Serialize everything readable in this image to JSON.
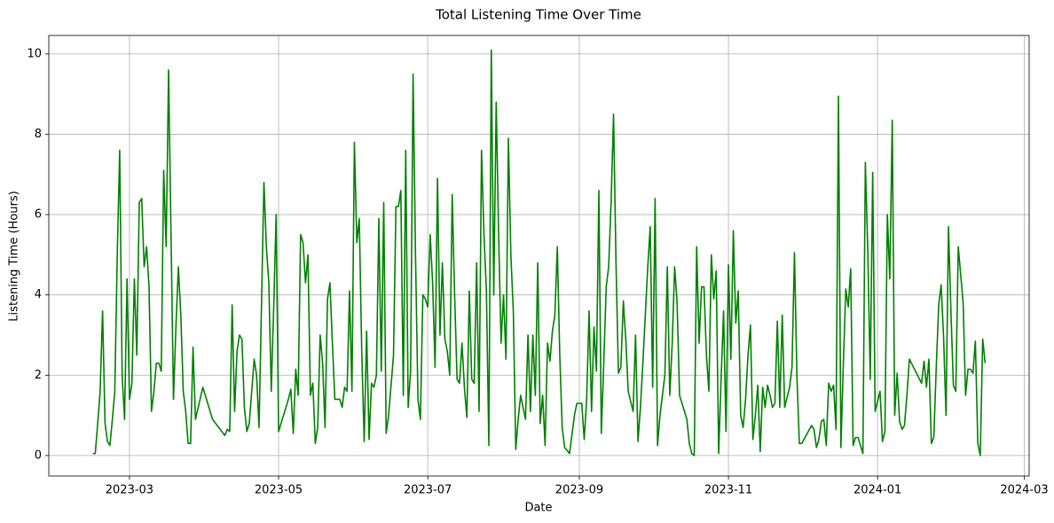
{
  "chart_data": {
    "type": "line",
    "title": "Total Listening Time Over Time",
    "xlabel": "Date",
    "ylabel": "Listening Time (Hours)",
    "x": [
      "2023-02-14",
      "2023-02-15",
      "2023-02-16",
      "2023-02-17",
      "2023-02-18",
      "2023-02-19",
      "2023-02-20",
      "2023-02-21",
      "2023-02-22",
      "2023-02-23",
      "2023-02-24",
      "2023-02-25",
      "2023-02-26",
      "2023-02-27",
      "2023-02-28",
      "2023-03-01",
      "2023-03-02",
      "2023-03-03",
      "2023-03-04",
      "2023-03-05",
      "2023-03-06",
      "2023-03-07",
      "2023-03-08",
      "2023-03-09",
      "2023-03-10",
      "2023-03-11",
      "2023-03-12",
      "2023-03-13",
      "2023-03-14",
      "2023-03-15",
      "2023-03-16",
      "2023-03-17",
      "2023-03-18",
      "2023-03-19",
      "2023-03-20",
      "2023-03-21",
      "2023-03-22",
      "2023-03-23",
      "2023-03-24",
      "2023-03-25",
      "2023-03-26",
      "2023-03-27",
      "2023-03-28",
      "2023-03-31",
      "2023-04-04",
      "2023-04-09",
      "2023-04-10",
      "2023-04-11",
      "2023-04-12",
      "2023-04-13",
      "2023-04-14",
      "2023-04-15",
      "2023-04-16",
      "2023-04-17",
      "2023-04-18",
      "2023-04-19",
      "2023-04-21",
      "2023-04-22",
      "2023-04-23",
      "2023-04-25",
      "2023-04-26",
      "2023-04-27",
      "2023-04-28",
      "2023-04-29",
      "2023-04-30",
      "2023-05-01",
      "2023-05-05",
      "2023-05-06",
      "2023-05-07",
      "2023-05-08",
      "2023-05-09",
      "2023-05-10",
      "2023-05-11",
      "2023-05-12",
      "2023-05-13",
      "2023-05-14",
      "2023-05-15",
      "2023-05-16",
      "2023-05-17",
      "2023-05-18",
      "2023-05-19",
      "2023-05-20",
      "2023-05-21",
      "2023-05-22",
      "2023-05-23",
      "2023-05-24",
      "2023-05-26",
      "2023-05-27",
      "2023-05-28",
      "2023-05-29",
      "2023-05-30",
      "2023-05-31",
      "2023-06-01",
      "2023-06-02",
      "2023-06-03",
      "2023-06-04",
      "2023-06-05",
      "2023-06-06",
      "2023-06-07",
      "2023-06-08",
      "2023-06-09",
      "2023-06-10",
      "2023-06-11",
      "2023-06-12",
      "2023-06-13",
      "2023-06-14",
      "2023-06-15",
      "2023-06-17",
      "2023-06-18",
      "2023-06-19",
      "2023-06-20",
      "2023-06-21",
      "2023-06-22",
      "2023-06-23",
      "2023-06-24",
      "2023-06-25",
      "2023-06-26",
      "2023-06-27",
      "2023-06-28",
      "2023-06-29",
      "2023-06-30",
      "2023-07-01",
      "2023-07-02",
      "2023-07-03",
      "2023-07-04",
      "2023-07-05",
      "2023-07-06",
      "2023-07-07",
      "2023-07-08",
      "2023-07-09",
      "2023-07-10",
      "2023-07-11",
      "2023-07-12",
      "2023-07-13",
      "2023-07-14",
      "2023-07-15",
      "2023-07-16",
      "2023-07-17",
      "2023-07-18",
      "2023-07-19",
      "2023-07-20",
      "2023-07-21",
      "2023-07-22",
      "2023-07-23",
      "2023-07-24",
      "2023-07-25",
      "2023-07-26",
      "2023-07-27",
      "2023-07-28",
      "2023-07-29",
      "2023-07-30",
      "2023-07-31",
      "2023-08-01",
      "2023-08-02",
      "2023-08-03",
      "2023-08-04",
      "2023-08-05",
      "2023-08-06",
      "2023-08-07",
      "2023-08-08",
      "2023-08-09",
      "2023-08-10",
      "2023-08-11",
      "2023-08-12",
      "2023-08-13",
      "2023-08-14",
      "2023-08-15",
      "2023-08-16",
      "2023-08-17",
      "2023-08-18",
      "2023-08-19",
      "2023-08-20",
      "2023-08-21",
      "2023-08-22",
      "2023-08-23",
      "2023-08-24",
      "2023-08-25",
      "2023-08-26",
      "2023-08-28",
      "2023-08-30",
      "2023-08-31",
      "2023-09-02",
      "2023-09-03",
      "2023-09-04",
      "2023-09-05",
      "2023-09-06",
      "2023-09-07",
      "2023-09-08",
      "2023-09-09",
      "2023-09-10",
      "2023-09-11",
      "2023-09-12",
      "2023-09-13",
      "2023-09-14",
      "2023-09-15",
      "2023-09-16",
      "2023-09-17",
      "2023-09-18",
      "2023-09-19",
      "2023-09-20",
      "2023-09-21",
      "2023-09-23",
      "2023-09-24",
      "2023-09-25",
      "2023-09-26",
      "2023-09-27",
      "2023-09-28",
      "2023-09-29",
      "2023-09-30",
      "2023-10-01",
      "2023-10-02",
      "2023-10-03",
      "2023-10-04",
      "2023-10-06",
      "2023-10-07",
      "2023-10-08",
      "2023-10-09",
      "2023-10-10",
      "2023-10-11",
      "2023-10-12",
      "2023-10-15",
      "2023-10-16",
      "2023-10-17",
      "2023-10-18",
      "2023-10-19",
      "2023-10-20",
      "2023-10-21",
      "2023-10-22",
      "2023-10-23",
      "2023-10-24",
      "2023-10-25",
      "2023-10-26",
      "2023-10-27",
      "2023-10-28",
      "2023-10-29",
      "2023-10-30",
      "2023-10-31",
      "2023-11-01",
      "2023-11-02",
      "2023-11-03",
      "2023-11-04",
      "2023-11-05",
      "2023-11-06",
      "2023-11-07",
      "2023-11-08",
      "2023-11-09",
      "2023-11-10",
      "2023-11-11",
      "2023-11-12",
      "2023-11-13",
      "2023-11-14",
      "2023-11-15",
      "2023-11-16",
      "2023-11-17",
      "2023-11-18",
      "2023-11-19",
      "2023-11-20",
      "2023-11-21",
      "2023-11-22",
      "2023-11-23",
      "2023-11-24",
      "2023-11-26",
      "2023-11-27",
      "2023-11-28",
      "2023-11-29",
      "2023-11-30",
      "2023-12-01",
      "2023-12-05",
      "2023-12-06",
      "2023-12-07",
      "2023-12-08",
      "2023-12-09",
      "2023-12-10",
      "2023-12-11",
      "2023-12-12",
      "2023-12-13",
      "2023-12-14",
      "2023-12-15",
      "2023-12-16",
      "2023-12-17",
      "2023-12-18",
      "2023-12-19",
      "2023-12-20",
      "2023-12-21",
      "2023-12-22",
      "2023-12-23",
      "2023-12-24",
      "2023-12-25",
      "2023-12-26",
      "2023-12-27",
      "2023-12-28",
      "2023-12-29",
      "2023-12-30",
      "2023-12-31",
      "2024-01-02",
      "2024-01-03",
      "2024-01-04",
      "2024-01-05",
      "2024-01-06",
      "2024-01-07",
      "2024-01-08",
      "2024-01-09",
      "2024-01-10",
      "2024-01-11",
      "2024-01-12",
      "2024-01-13",
      "2024-01-14",
      "2024-01-19",
      "2024-01-20",
      "2024-01-21",
      "2024-01-22",
      "2024-01-23",
      "2024-01-24",
      "2024-01-25",
      "2024-01-26",
      "2024-01-27",
      "2024-01-28",
      "2024-01-29",
      "2024-01-30",
      "2024-01-31",
      "2024-02-01",
      "2024-02-02",
      "2024-02-03",
      "2024-02-04",
      "2024-02-05",
      "2024-02-06",
      "2024-02-07",
      "2024-02-08",
      "2024-02-09",
      "2024-02-10",
      "2024-02-11",
      "2024-02-12",
      "2024-02-13",
      "2024-02-14"
    ],
    "series": [
      {
        "name": "Listening Time",
        "color": "#008000",
        "values": [
          0.05,
          0.05,
          0.8,
          1.6,
          3.6,
          0.8,
          0.35,
          0.25,
          0.9,
          1.6,
          5,
          7.6,
          2.0,
          0.9,
          4.4,
          1.4,
          1.8,
          4.4,
          2.5,
          6.3,
          6.4,
          4.7,
          5.2,
          4.2,
          1.1,
          1.6,
          2.3,
          2.3,
          2.1,
          7.1,
          5.2,
          9.6,
          5.5,
          1.4,
          3.2,
          4.7,
          3.5,
          1.6,
          1.1,
          0.3,
          0.3,
          2.7,
          0.9,
          1.7,
          0.9,
          0.5,
          0.65,
          0.6,
          3.75,
          1.1,
          2.6,
          3.0,
          2.9,
          1.2,
          0.6,
          0.8,
          2.4,
          2.0,
          0.7,
          6.8,
          5.2,
          4.3,
          1.6,
          3.7,
          6.0,
          0.6,
          1.4,
          1.65,
          0.55,
          2.15,
          1.5,
          5.5,
          5.3,
          4.3,
          5.0,
          1.5,
          1.8,
          0.3,
          0.7,
          3.0,
          2.3,
          0.7,
          3.9,
          4.3,
          2.8,
          1.4,
          1.4,
          1.2,
          1.7,
          1.6,
          4.1,
          1.6,
          7.8,
          5.3,
          5.9,
          2.6,
          0.35,
          3.1,
          0.4,
          1.8,
          1.7,
          2.0,
          5.9,
          2.1,
          6.3,
          0.55,
          1.0,
          2.5,
          6.2,
          6.2,
          6.6,
          1.5,
          7.6,
          1.2,
          2.1,
          9.5,
          5.0,
          1.4,
          0.9,
          4.0,
          3.9,
          3.7,
          5.5,
          4.3,
          2.2,
          6.9,
          3.0,
          4.8,
          2.9,
          2.6,
          2.0,
          6.5,
          4.0,
          1.9,
          1.8,
          2.8,
          1.7,
          0.95,
          4.1,
          1.9,
          1.8,
          4.8,
          1.1,
          7.6,
          5.5,
          4.1,
          0.25,
          10.1,
          4.0,
          8.8,
          5.5,
          2.8,
          4.0,
          2.4,
          7.9,
          5.0,
          3.6,
          0.15,
          0.9,
          1.5,
          1.2,
          0.9,
          3.0,
          1.1,
          3.0,
          1.5,
          4.8,
          0.8,
          1.5,
          0.25,
          2.8,
          2.35,
          3.1,
          3.5,
          5.2,
          2.5,
          0.7,
          0.2,
          0.05,
          1.0,
          1.3,
          1.3,
          0.4,
          1.4,
          3.6,
          1.1,
          3.2,
          2.1,
          6.6,
          0.55,
          2.3,
          4.2,
          4.7,
          6.3,
          8.5,
          4.8,
          2.05,
          2.2,
          3.85,
          2.9,
          1.6,
          1.1,
          3.0,
          0.35,
          1.2,
          2.3,
          3.5,
          4.7,
          5.7,
          1.7,
          6.4,
          0.25,
          1.0,
          2.0,
          4.7,
          1.5,
          2.8,
          4.7,
          3.8,
          1.5,
          0.9,
          0.3,
          0.05,
          0.0,
          5.2,
          2.8,
          4.2,
          4.2,
          2.5,
          1.6,
          5.0,
          3.9,
          4.6,
          0.05,
          1.9,
          3.6,
          0.6,
          4.75,
          2.4,
          5.6,
          3.3,
          4.1,
          1.0,
          0.7,
          1.4,
          2.5,
          3.25,
          0.4,
          1.0,
          1.75,
          0.1,
          1.7,
          1.2,
          1.75,
          1.5,
          1.2,
          1.3,
          3.35,
          1.2,
          3.5,
          1.2,
          1.7,
          2.2,
          5.05,
          2.0,
          0.3,
          0.3,
          0.75,
          0.65,
          0.2,
          0.4,
          0.85,
          0.9,
          0.25,
          1.8,
          1.6,
          1.75,
          0.65,
          8.95,
          0.2,
          2.3,
          4.15,
          3.7,
          4.65,
          0.25,
          0.45,
          0.45,
          0.25,
          0.05,
          7.3,
          5.1,
          1.9,
          7.05,
          1.1,
          1.6,
          0.35,
          0.6,
          6.0,
          4.4,
          8.35,
          1.0,
          2.05,
          0.85,
          0.65,
          0.75,
          1.5,
          2.4,
          1.8,
          2.35,
          1.7,
          2.4,
          0.3,
          0.45,
          2.2,
          3.75,
          4.25,
          2.95,
          1.0,
          5.7,
          3.6,
          1.75,
          1.6,
          5.2,
          4.5,
          3.8,
          1.5,
          2.15,
          2.15,
          2.05,
          2.85,
          0.3,
          0.0,
          2.9,
          2.3
        ]
      }
    ],
    "xlim": [
      "2023-01-27",
      "2024-03-03"
    ],
    "xticks": [
      {
        "value": "2023-03-01",
        "label": "2023-03"
      },
      {
        "value": "2023-05-01",
        "label": "2023-05"
      },
      {
        "value": "2023-07-01",
        "label": "2023-07"
      },
      {
        "value": "2023-09-01",
        "label": "2023-09"
      },
      {
        "value": "2023-11-01",
        "label": "2023-11"
      },
      {
        "value": "2024-01-01",
        "label": "2024-01"
      },
      {
        "value": "2024-03-01",
        "label": "2024-03"
      }
    ],
    "ylim": [
      -0.51,
      10.46
    ],
    "yticks": [
      0,
      2,
      4,
      6,
      8,
      10
    ],
    "grid": true
  }
}
